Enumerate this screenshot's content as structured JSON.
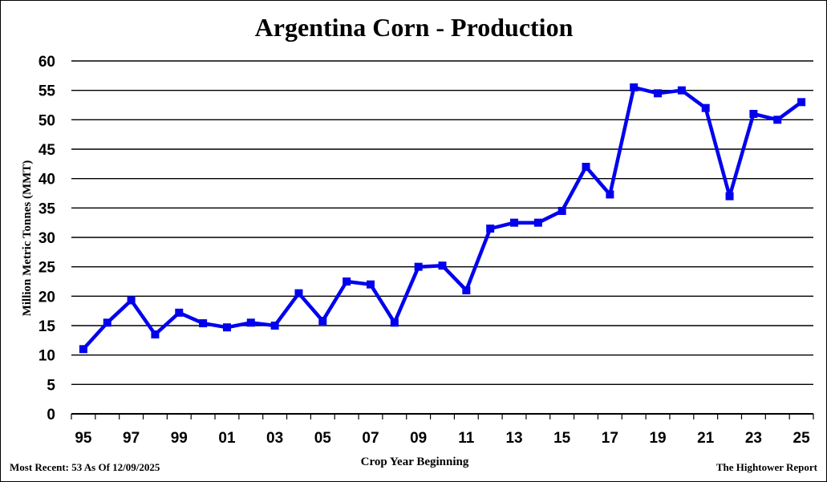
{
  "footer": {
    "left": "Most Recent: 53 As Of 12/09/2025",
    "right": "The Hightower Report"
  },
  "chart_data": {
    "type": "line",
    "title": "Argentina Corn - Production",
    "xlabel": "Crop Year Beginning",
    "ylabel": "Million Metric Tonnes (MMT)",
    "ylim": [
      0,
      60
    ],
    "yticks": [
      0,
      5,
      10,
      15,
      20,
      25,
      30,
      35,
      40,
      45,
      50,
      55,
      60
    ],
    "grid": true,
    "line_color": "#0000ee",
    "x": [
      "95",
      "96",
      "97",
      "98",
      "99",
      "00",
      "01",
      "02",
      "03",
      "04",
      "05",
      "06",
      "07",
      "08",
      "09",
      "10",
      "11",
      "12",
      "13",
      "14",
      "15",
      "16",
      "17",
      "18",
      "19",
      "20",
      "21",
      "22",
      "23",
      "24",
      "25"
    ],
    "xtick_labels": [
      "95",
      "97",
      "99",
      "01",
      "03",
      "05",
      "07",
      "09",
      "11",
      "13",
      "15",
      "17",
      "19",
      "21",
      "23",
      "25"
    ],
    "series": [
      {
        "values": [
          11,
          15.5,
          19.3,
          13.5,
          17.2,
          15.4,
          14.7,
          15.5,
          15,
          20.5,
          15.8,
          22.5,
          22,
          15.5,
          25,
          25.2,
          21,
          31.5,
          32.5,
          32.5,
          34.5,
          42,
          37.3,
          55.5,
          54.5,
          55,
          52,
          37,
          51,
          50,
          53
        ]
      }
    ]
  }
}
